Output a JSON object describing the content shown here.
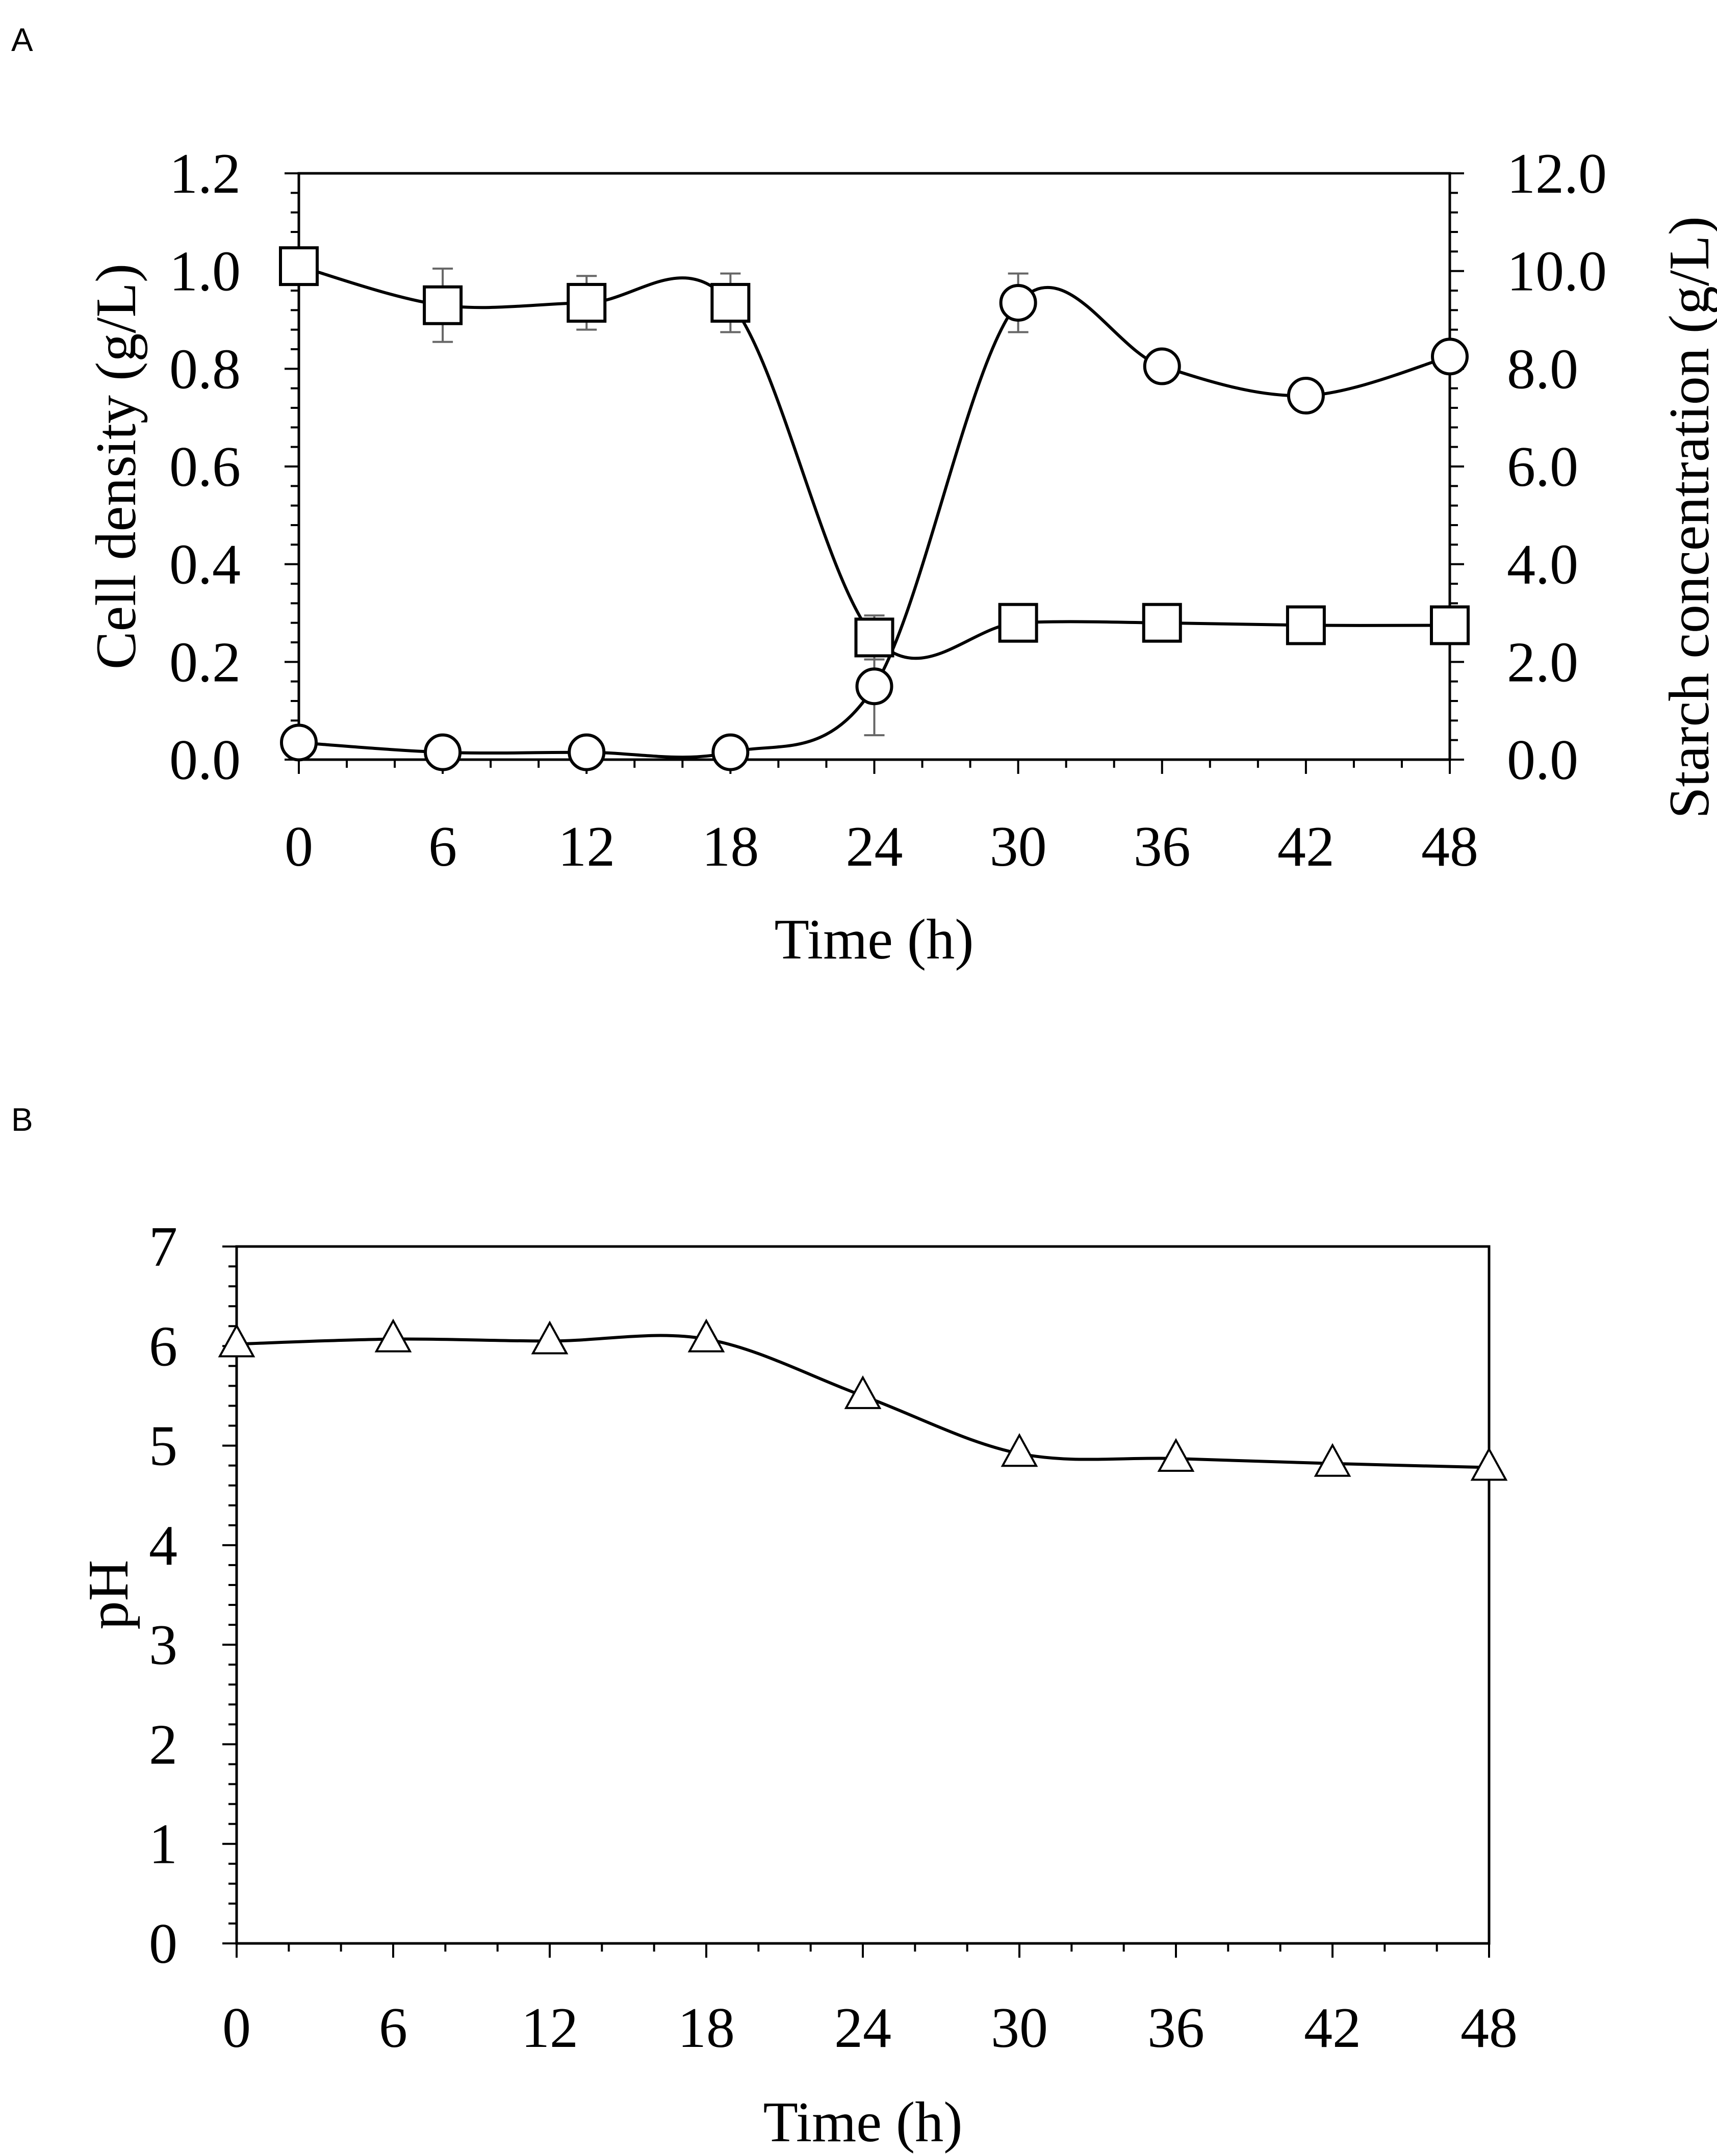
{
  "chart_data": [
    {
      "type": "line",
      "panel_label": "A",
      "title": "",
      "xlabel": "Time (h)",
      "ylabel": "Cell density (g/L)",
      "y2label": "Starch concentration (g/L)",
      "x": [
        0,
        6,
        12,
        18,
        24,
        30,
        36,
        42,
        48
      ],
      "xticks": [
        "0",
        "6",
        "12",
        "18",
        "24",
        "30",
        "36",
        "42",
        "48"
      ],
      "xlim": [
        0,
        48
      ],
      "ylim": [
        0,
        1.2
      ],
      "yticks": [
        "0.0",
        "0.2",
        "0.4",
        "0.6",
        "0.8",
        "1.0",
        "1.2"
      ],
      "y2lim": [
        0,
        12
      ],
      "y2ticks": [
        "0.0",
        "2.0",
        "4.0",
        "6.0",
        "8.0",
        "10.0",
        "12.0"
      ],
      "series": [
        {
          "name": "Cell density",
          "marker": "circle",
          "axis": "left",
          "values": [
            0.035,
            0.015,
            0.015,
            0.015,
            0.15,
            0.935,
            0.805,
            0.745,
            0.825
          ],
          "errors": [
            0.0,
            0.0,
            0.0,
            0.0,
            0.1,
            0.06,
            0.0,
            0.03,
            0.0
          ]
        },
        {
          "name": "Starch concentration",
          "marker": "square",
          "axis": "right",
          "values": [
            10.1,
            9.3,
            9.35,
            9.35,
            2.5,
            2.8,
            2.8,
            2.75,
            2.75
          ],
          "errors": [
            0.0,
            0.75,
            0.55,
            0.6,
            0.45,
            0.0,
            0.0,
            0.0,
            0.0
          ]
        }
      ],
      "grid": false
    },
    {
      "type": "line",
      "panel_label": "B",
      "title": "",
      "xlabel": "Time (h)",
      "ylabel": "pH",
      "x": [
        0,
        6,
        12,
        18,
        24,
        30,
        36,
        42,
        48
      ],
      "xticks": [
        "0",
        "6",
        "12",
        "18",
        "24",
        "30",
        "36",
        "42",
        "48"
      ],
      "xlim": [
        0,
        48
      ],
      "ylim": [
        0,
        7
      ],
      "yticks": [
        "0",
        "1",
        "2",
        "3",
        "4",
        "5",
        "6",
        "7"
      ],
      "series": [
        {
          "name": "pH",
          "marker": "triangle",
          "axis": "left",
          "values": [
            6.02,
            6.07,
            6.05,
            6.07,
            5.5,
            4.92,
            4.87,
            4.82,
            4.78
          ],
          "errors": [
            0,
            0,
            0,
            0,
            0,
            0,
            0,
            0,
            0
          ]
        }
      ],
      "grid": false
    }
  ]
}
